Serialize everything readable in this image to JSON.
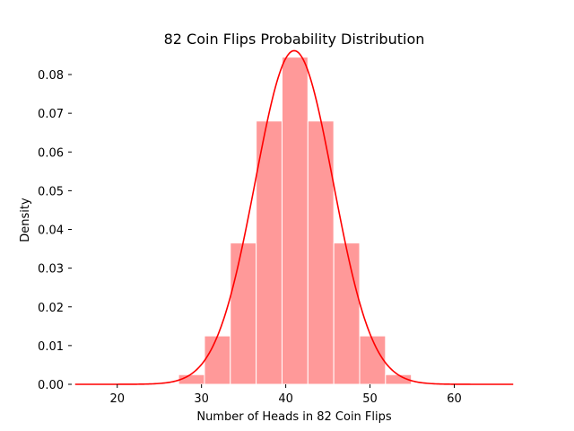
{
  "chart_data": {
    "type": "bar",
    "title": "82 Coin Flips Probability Distribution",
    "xlabel": "Number of Heads in 82 Coin Flips",
    "ylabel": "Density",
    "xlim": [
      14.6,
      67.4
    ],
    "ylim": [
      0,
      0.0858
    ],
    "grid": false,
    "legend": "none",
    "xticks": [
      20,
      30,
      40,
      50,
      60
    ],
    "yticks": [
      0.0,
      0.01,
      0.02,
      0.03,
      0.04,
      0.05,
      0.06,
      0.07,
      0.08
    ],
    "ytick_labels": [
      "0.00",
      "0.01",
      "0.02",
      "0.03",
      "0.04",
      "0.05",
      "0.06",
      "0.07",
      "0.08"
    ],
    "bins": [
      {
        "x0": 27.28,
        "x1": 30.35,
        "value": 0.0025
      },
      {
        "x0": 30.35,
        "x1": 33.42,
        "value": 0.0125
      },
      {
        "x0": 33.42,
        "x1": 36.49,
        "value": 0.0365
      },
      {
        "x0": 36.49,
        "x1": 39.56,
        "value": 0.068
      },
      {
        "x0": 39.56,
        "x1": 42.63,
        "value": 0.0845
      },
      {
        "x0": 42.63,
        "x1": 45.7,
        "value": 0.068
      },
      {
        "x0": 45.7,
        "x1": 48.77,
        "value": 0.0365
      },
      {
        "x0": 48.77,
        "x1": 51.84,
        "value": 0.0125
      },
      {
        "x0": 51.84,
        "x1": 54.91,
        "value": 0.0025
      }
    ],
    "curve": {
      "type": "normal-density",
      "mean": 41,
      "sd": 4.63,
      "x_range": [
        15,
        67
      ]
    },
    "colors": {
      "bars": "#ff9999",
      "bar_edge": "#ffffff",
      "curve": "#ff0000",
      "axis": "#000000"
    }
  }
}
